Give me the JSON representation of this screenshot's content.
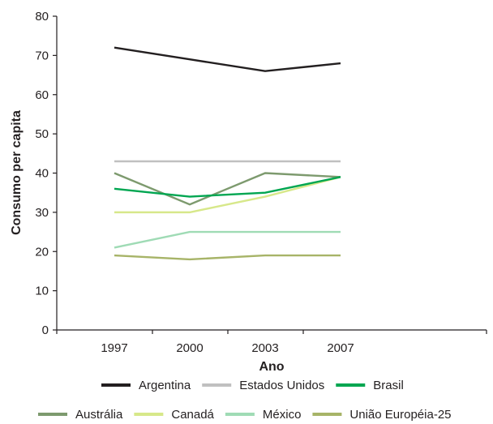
{
  "chart_data": {
    "type": "line",
    "title": "",
    "xlabel": "Ano",
    "ylabel": "Consumo per capita",
    "categories": [
      "1997",
      "2000",
      "2003",
      "2007"
    ],
    "ylim": [
      0,
      80
    ],
    "yticks": [
      0,
      10,
      20,
      30,
      40,
      50,
      60,
      70,
      80
    ],
    "grid": false,
    "legend_position": "bottom",
    "series": [
      {
        "name": "Argentina",
        "color": "#231f20",
        "values": [
          72,
          69,
          66,
          68
        ]
      },
      {
        "name": "Estados Unidos",
        "color": "#c0c0c0",
        "values": [
          43,
          43,
          43,
          43
        ]
      },
      {
        "name": "Brasil",
        "color": "#00a651",
        "values": [
          36,
          34,
          35,
          39
        ]
      },
      {
        "name": "Austrália",
        "color": "#7d9a6e",
        "values": [
          40,
          32,
          40,
          39
        ]
      },
      {
        "name": "Canadá",
        "color": "#d7e88a",
        "values": [
          30,
          30,
          34,
          39
        ]
      },
      {
        "name": "México",
        "color": "#9fdbb5",
        "values": [
          21,
          25,
          25,
          25
        ]
      },
      {
        "name": "União Européia-25",
        "color": "#a7b468",
        "values": [
          19,
          18,
          19,
          19
        ]
      }
    ]
  }
}
